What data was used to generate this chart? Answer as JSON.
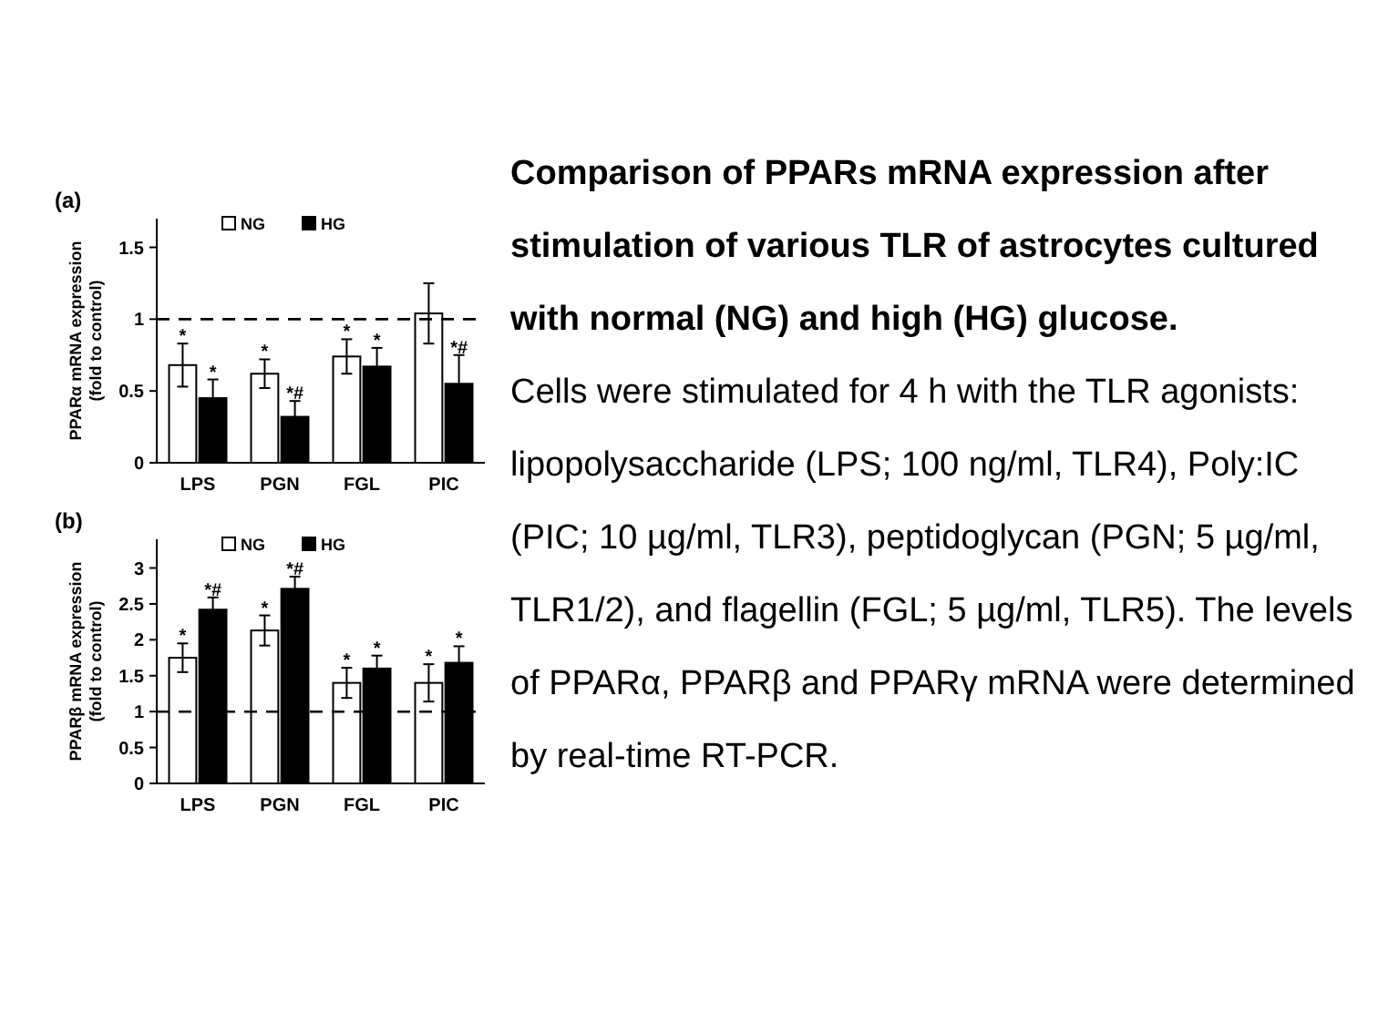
{
  "chart_data": [
    {
      "type": "bar",
      "title": "(a)",
      "ylabel": "PPARα mRNA expression\n(fold to control)",
      "categories": [
        "LPS",
        "PGN",
        "FGL",
        "PIC"
      ],
      "series": [
        {
          "name": "NG",
          "color": "#ffffff",
          "values": [
            0.68,
            0.62,
            0.74,
            1.04
          ],
          "errors": [
            0.15,
            0.1,
            0.12,
            0.21
          ],
          "value_labels": [
            "*",
            "*",
            "*",
            null
          ]
        },
        {
          "name": "HG",
          "color": "#000000",
          "values": [
            0.45,
            0.32,
            0.67,
            0.55
          ],
          "errors": [
            0.13,
            0.11,
            0.13,
            0.2
          ],
          "value_labels": [
            "*",
            "*#",
            "*",
            "*#"
          ]
        }
      ],
      "ylim": [
        0,
        1.7
      ],
      "yticks": [
        0,
        0.5,
        1,
        1.5
      ],
      "legend": "top",
      "ref_lines": [
        {
          "axis": "y",
          "value": 1,
          "line_style": "dashed"
        }
      ]
    },
    {
      "type": "bar",
      "title": "(b)",
      "ylabel": "PPARβ mRNA expression\n(fold to control)",
      "categories": [
        "LPS",
        "PGN",
        "FGL",
        "PIC"
      ],
      "series": [
        {
          "name": "NG",
          "color": "#ffffff",
          "values": [
            1.75,
            2.13,
            1.4,
            1.4
          ],
          "errors": [
            0.2,
            0.21,
            0.21,
            0.26
          ],
          "value_labels": [
            "*",
            "*",
            "*",
            "*"
          ]
        },
        {
          "name": "HG",
          "color": "#000000",
          "values": [
            2.42,
            2.71,
            1.6,
            1.68
          ],
          "errors": [
            0.17,
            0.17,
            0.18,
            0.23
          ],
          "value_labels": [
            "*#",
            "*#",
            "*",
            "*"
          ]
        }
      ],
      "ylim": [
        0,
        3.4
      ],
      "yticks": [
        0,
        0.5,
        1,
        1.5,
        2,
        2.5,
        3
      ],
      "legend": "top",
      "ref_lines": [
        {
          "axis": "y",
          "value": 1,
          "line_style": "dashed"
        }
      ]
    },
    {
      "type": "other",
      "title": "Comparison of PPARs mRNA expression after stimulation of various TLR of astrocytes cultured with normal (NG) and high (HG) glucose.",
      "annotations": [
        "Cells were stimulated for 4 h with the TLR agonists: lipopolysaccharide (LPS; 100 ng/ml, TLR4), Poly:IC (PIC; 10 µg/ml, TLR3), peptidoglycan (PGN; 5 µg/ml, TLR1/2), and flagellin (FGL; 5 µg/ml, TLR5). The levels of PPARα, PPARβ and PPARγ mRNA were determined by real-time RT-PCR."
      ]
    }
  ]
}
